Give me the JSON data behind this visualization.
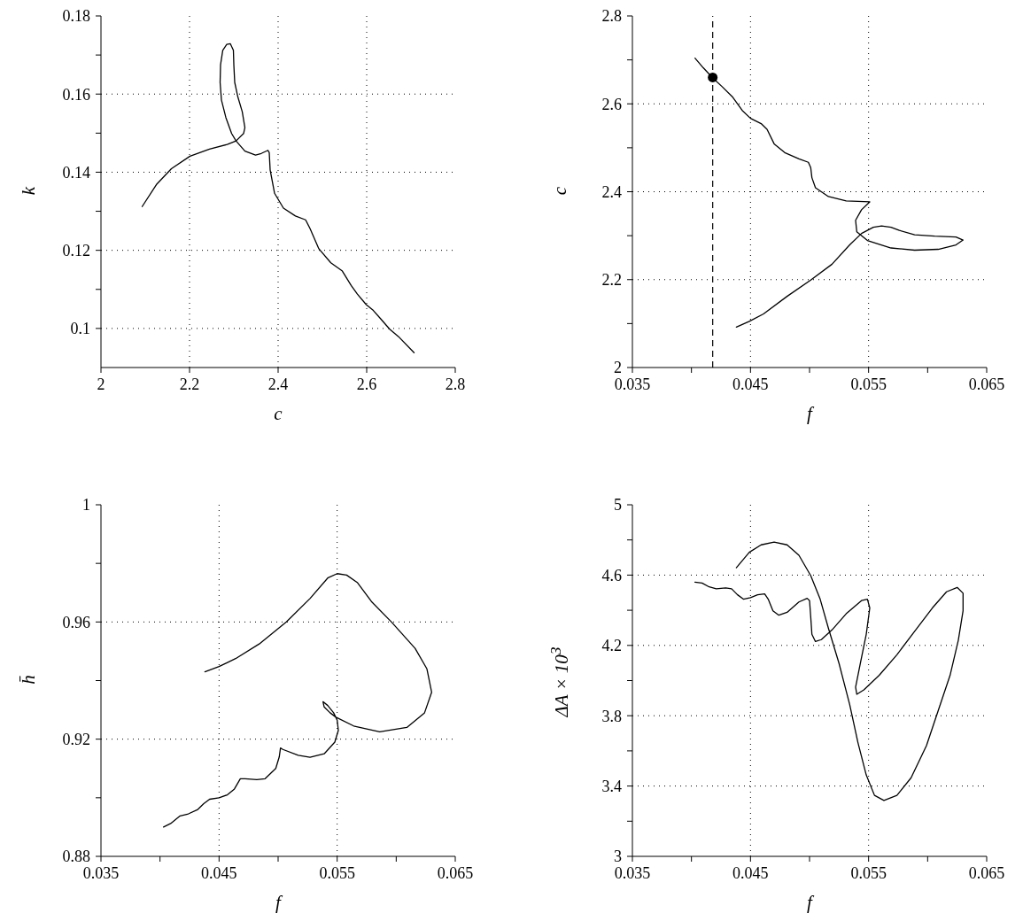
{
  "chart_data": [
    {
      "type": "line",
      "xlabel": "c",
      "ylabel": "k",
      "xlim": [
        2,
        2.8
      ],
      "ylim": [
        0.09,
        0.18
      ],
      "xticks": [
        2,
        2.2,
        2.4,
        2.6,
        2.8
      ],
      "yticks": [
        0.1,
        {
          "value": 0.11,
          "label": null
        },
        0.12,
        {
          "value": 0.13,
          "label": null
        },
        0.14,
        {
          "value": 0.15,
          "label": null
        },
        0.16,
        {
          "value": 0.17,
          "label": null
        },
        0.18
      ],
      "grid": true,
      "series": [
        {
          "color": "#000000",
          "x": [
            2.093,
            2.125,
            2.159,
            2.201,
            2.245,
            2.285,
            2.305,
            2.322,
            2.325,
            2.319,
            2.309,
            2.302,
            2.3,
            2.299,
            2.292,
            2.284,
            2.275,
            2.27,
            2.269,
            2.272,
            2.282,
            2.295,
            2.305,
            2.325,
            2.349,
            2.362,
            2.377,
            2.38,
            2.382,
            2.392,
            2.412,
            2.439,
            2.462,
            2.472,
            2.492,
            2.519,
            2.545,
            2.565,
            2.579,
            2.599,
            2.615,
            2.632,
            2.652,
            2.672,
            2.707
          ],
          "values": [
            0.1312,
            0.1368,
            0.1409,
            0.1441,
            0.1459,
            0.1471,
            0.148,
            0.1499,
            0.1514,
            0.1555,
            0.1593,
            0.163,
            0.1675,
            0.1712,
            0.1729,
            0.1727,
            0.1712,
            0.1675,
            0.163,
            0.1585,
            0.154,
            0.1499,
            0.148,
            0.1454,
            0.1444,
            0.1448,
            0.1456,
            0.145,
            0.1406,
            0.1346,
            0.1308,
            0.1288,
            0.1278,
            0.1256,
            0.1204,
            0.1168,
            0.1147,
            0.111,
            0.1088,
            0.1061,
            0.1046,
            0.1024,
            0.0998,
            0.0979,
            0.0938
          ]
        }
      ]
    },
    {
      "type": "line",
      "xlabel": "f",
      "ylabel": "c",
      "xlim": [
        0.035,
        0.065
      ],
      "ylim": [
        2,
        2.8
      ],
      "xticks": [
        0.035,
        {
          "value": 0.04,
          "label": null
        },
        0.045,
        {
          "value": 0.05,
          "label": null
        },
        0.055,
        {
          "value": 0.06,
          "label": null
        },
        0.065
      ],
      "yticks": [
        2,
        {
          "value": 2.1,
          "label": null
        },
        2.2,
        {
          "value": 2.3,
          "label": null
        },
        2.4,
        {
          "value": 2.5,
          "label": null
        },
        2.6,
        {
          "value": 2.7,
          "label": null
        },
        2.8
      ],
      "grid": true,
      "ref_lines": [
        {
          "axis": "x",
          "value": 0.0418,
          "color": "#000000",
          "line_style": "dashed"
        }
      ],
      "series": [
        {
          "color": "#000000",
          "x": [
            0.0403,
            0.041,
            0.0418,
            0.0426,
            0.0435,
            0.0443,
            0.045,
            0.0459,
            0.0464,
            0.047,
            0.0479,
            0.0491,
            0.0499,
            0.0501,
            0.0502,
            0.0505,
            0.0516,
            0.0531,
            0.0551,
            0.0544,
            0.0539,
            0.054,
            0.0549,
            0.0569,
            0.0589,
            0.0609,
            0.0624,
            0.063,
            0.0624,
            0.0606,
            0.0589,
            0.0576,
            0.0569,
            0.0561,
            0.0554,
            0.0544,
            0.0534,
            0.0519,
            0.0501,
            0.0481,
            0.0461,
            0.0449,
            0.0438
          ],
          "values": [
            2.704,
            2.682,
            2.659,
            2.639,
            2.615,
            2.585,
            2.567,
            2.555,
            2.542,
            2.509,
            2.489,
            2.475,
            2.467,
            2.455,
            2.432,
            2.409,
            2.389,
            2.379,
            2.377,
            2.359,
            2.335,
            2.309,
            2.289,
            2.272,
            2.267,
            2.269,
            2.279,
            2.29,
            2.297,
            2.299,
            2.302,
            2.312,
            2.319,
            2.322,
            2.319,
            2.305,
            2.279,
            2.235,
            2.199,
            2.162,
            2.122,
            2.105,
            2.092
          ]
        },
        {
          "type": "scatter",
          "marker": "circle",
          "color": "#000000",
          "x": [
            0.0418
          ],
          "values": [
            2.66
          ]
        }
      ]
    },
    {
      "type": "line",
      "xlabel": "f",
      "ylabel": "h̄",
      "xlim": [
        0.035,
        0.065
      ],
      "ylim": [
        0.88,
        1
      ],
      "xticks": [
        0.035,
        {
          "value": 0.04,
          "label": null
        },
        0.045,
        {
          "value": 0.05,
          "label": null
        },
        0.055,
        {
          "value": 0.06,
          "label": null
        },
        0.065
      ],
      "yticks": [
        0.88,
        {
          "value": 0.9,
          "label": null
        },
        0.92,
        {
          "value": 0.94,
          "label": null
        },
        0.96,
        {
          "value": 0.98,
          "label": null
        },
        1
      ],
      "grid": true,
      "series": [
        {
          "color": "#000000",
          "x": [
            0.0403,
            0.0409,
            0.0417,
            0.0424,
            0.0432,
            0.0437,
            0.0442,
            0.045,
            0.0457,
            0.0463,
            0.0468,
            0.0472,
            0.0482,
            0.0489,
            0.0498,
            0.0501,
            0.0502,
            0.0504,
            0.0517,
            0.0527,
            0.0539,
            0.0548,
            0.0551,
            0.055,
            0.0547,
            0.0542,
            0.0538,
            0.0539,
            0.0544,
            0.0549,
            0.0564,
            0.0586,
            0.0609,
            0.0624,
            0.063,
            0.0626,
            0.0616,
            0.0596,
            0.0579,
            0.0567,
            0.0558,
            0.055,
            0.0542,
            0.0527,
            0.0507,
            0.0484,
            0.0464,
            0.045,
            0.0438
          ],
          "values": [
            0.89,
            0.8912,
            0.8938,
            0.8945,
            0.896,
            0.898,
            0.8995,
            0.9,
            0.901,
            0.903,
            0.9065,
            0.9065,
            0.9062,
            0.9065,
            0.91,
            0.914,
            0.917,
            0.9165,
            0.9145,
            0.9138,
            0.915,
            0.919,
            0.923,
            0.9265,
            0.929,
            0.9315,
            0.9328,
            0.931,
            0.929,
            0.9275,
            0.9245,
            0.9225,
            0.924,
            0.929,
            0.936,
            0.944,
            0.951,
            0.96,
            0.967,
            0.9735,
            0.976,
            0.9765,
            0.975,
            0.968,
            0.96,
            0.9525,
            0.9475,
            0.9448,
            0.943
          ]
        }
      ]
    },
    {
      "type": "line",
      "xlabel": "f",
      "ylabel": "ΔA × 10$^{3}$",
      "xlim": [
        0.035,
        0.065
      ],
      "ylim": [
        3,
        5
      ],
      "xticks": [
        0.035,
        {
          "value": 0.04,
          "label": null
        },
        0.045,
        {
          "value": 0.05,
          "label": null
        },
        0.055,
        {
          "value": 0.06,
          "label": null
        },
        0.065
      ],
      "yticks": [
        3,
        {
          "value": 3.2,
          "label": null
        },
        3.4,
        {
          "value": 3.6,
          "label": null
        },
        3.8,
        {
          "value": 4,
          "label": null
        },
        4.2,
        {
          "value": 4.4,
          "label": null
        },
        4.6,
        {
          "value": 4.8,
          "label": null
        },
        5
      ],
      "grid": true,
      "series": [
        {
          "color": "#000000",
          "x": [
            0.0403,
            0.0409,
            0.0415,
            0.0421,
            0.0429,
            0.0434,
            0.0439,
            0.0444,
            0.045,
            0.0456,
            0.0462,
            0.0465,
            0.0469,
            0.0474,
            0.0481,
            0.0491,
            0.0498,
            0.05,
            0.0501,
            0.0502,
            0.0505,
            0.051,
            0.0519,
            0.0531,
            0.0544,
            0.0549,
            0.0551,
            0.0548,
            0.0543,
            0.0539,
            0.054,
            0.0546,
            0.0559,
            0.0574,
            0.0589,
            0.0604,
            0.0616,
            0.0625,
            0.063,
            0.063,
            0.0626,
            0.0619,
            0.0609,
            0.0599,
            0.0586,
            0.0574,
            0.0563,
            0.0555,
            0.0548,
            0.0541,
            0.0534,
            0.0525,
            0.0516,
            0.0509,
            0.0501,
            0.0491,
            0.0481,
            0.047,
            0.0459,
            0.0449,
            0.0438
          ],
          "values": [
            4.56,
            4.555,
            4.533,
            4.522,
            4.527,
            4.522,
            4.488,
            4.463,
            4.472,
            4.488,
            4.493,
            4.463,
            4.397,
            4.372,
            4.388,
            4.447,
            4.468,
            4.455,
            4.363,
            4.263,
            4.222,
            4.233,
            4.288,
            4.38,
            4.455,
            4.463,
            4.413,
            4.263,
            4.097,
            3.963,
            3.922,
            3.947,
            4.03,
            4.147,
            4.28,
            4.413,
            4.505,
            4.53,
            4.497,
            4.397,
            4.23,
            4.03,
            3.83,
            3.63,
            3.447,
            3.347,
            3.318,
            3.347,
            3.463,
            3.647,
            3.863,
            4.097,
            4.297,
            4.463,
            4.597,
            4.713,
            4.772,
            4.788,
            4.772,
            4.73,
            4.642
          ]
        }
      ]
    }
  ]
}
